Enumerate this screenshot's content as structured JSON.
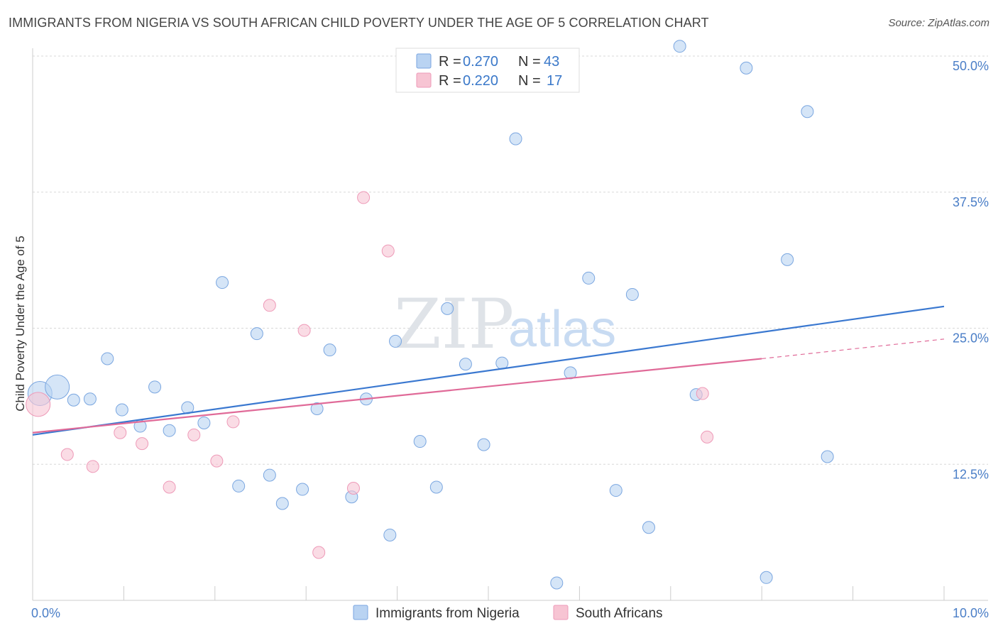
{
  "title": "IMMIGRANTS FROM NIGERIA VS SOUTH AFRICAN CHILD POVERTY UNDER THE AGE OF 5 CORRELATION CHART",
  "source": "Source: ZipAtlas.com",
  "watermark": {
    "zip": "ZIP",
    "atlas": "atlas"
  },
  "colors": {
    "blue": "#3a78d0",
    "pink": "#e06a98",
    "blue_fill": "#b9d3f2",
    "pink_fill": "#f7c4d3"
  },
  "legend": {
    "rows": [
      {
        "r_label": "R =",
        "r_value": "0.270",
        "n_label": "N =",
        "n_value": "43"
      },
      {
        "r_label": "R =",
        "r_value": "0.220",
        "n_label": "N =",
        "n_value": "17"
      }
    ]
  },
  "chart_data": {
    "type": "scatter",
    "title": "IMMIGRANTS FROM NIGERIA VS SOUTH AFRICAN CHILD POVERTY UNDER THE AGE OF 5 CORRELATION CHART",
    "xlabel": "",
    "ylabel": "Child Poverty Under the Age of 5",
    "xlim": [
      0,
      10
    ],
    "ylim": [
      0,
      50
    ],
    "x_tick_labels": [
      "0.0%",
      "10.0%"
    ],
    "y_ticks": [
      12.5,
      25.0,
      37.5,
      50.0
    ],
    "y_tick_labels": [
      "12.5%",
      "25.0%",
      "37.5%",
      "50.0%"
    ],
    "grid": true,
    "legend_position": "top-center",
    "series": [
      {
        "name": "Immigrants from Nigeria",
        "color": "#3a78d0",
        "points": [
          [
            0.08,
            19.0,
            3
          ],
          [
            0.27,
            19.6,
            2
          ],
          [
            0.45,
            18.4,
            1
          ],
          [
            0.63,
            18.5,
            1
          ],
          [
            0.82,
            22.2,
            1
          ],
          [
            0.98,
            17.5,
            1
          ],
          [
            1.18,
            16.0,
            1
          ],
          [
            1.34,
            19.6,
            1
          ],
          [
            1.5,
            15.6,
            1
          ],
          [
            1.7,
            17.7,
            1
          ],
          [
            1.88,
            16.3,
            1
          ],
          [
            2.08,
            29.2,
            1
          ],
          [
            2.26,
            10.5,
            1
          ],
          [
            2.46,
            24.5,
            1
          ],
          [
            2.6,
            11.5,
            1
          ],
          [
            2.74,
            8.9,
            1
          ],
          [
            2.96,
            10.2,
            1
          ],
          [
            3.12,
            17.6,
            1
          ],
          [
            3.26,
            23.0,
            1
          ],
          [
            3.5,
            9.5,
            1
          ],
          [
            3.66,
            18.5,
            1
          ],
          [
            3.92,
            6.0,
            1
          ],
          [
            3.98,
            23.8,
            1
          ],
          [
            4.25,
            14.6,
            1
          ],
          [
            4.43,
            10.4,
            1
          ],
          [
            4.55,
            26.8,
            1
          ],
          [
            4.75,
            21.7,
            1
          ],
          [
            4.95,
            14.3,
            1
          ],
          [
            5.15,
            21.8,
            1
          ],
          [
            5.3,
            42.4,
            1
          ],
          [
            5.75,
            1.6,
            1
          ],
          [
            5.9,
            20.9,
            1
          ],
          [
            6.1,
            29.6,
            1
          ],
          [
            6.4,
            10.1,
            1
          ],
          [
            6.58,
            28.1,
            1
          ],
          [
            6.76,
            6.7,
            1
          ],
          [
            7.1,
            50.9,
            1
          ],
          [
            7.28,
            18.9,
            1
          ],
          [
            7.83,
            48.9,
            1
          ],
          [
            8.05,
            2.1,
            1
          ],
          [
            8.28,
            31.3,
            1
          ],
          [
            8.5,
            44.9,
            1
          ],
          [
            8.72,
            13.2,
            1
          ]
        ]
      },
      {
        "name": "South Africans",
        "color": "#e06a98",
        "points": [
          [
            0.06,
            18.0,
            3
          ],
          [
            0.38,
            13.4,
            1
          ],
          [
            0.66,
            12.3,
            1
          ],
          [
            0.96,
            15.4,
            1
          ],
          [
            1.2,
            14.4,
            1
          ],
          [
            1.5,
            10.4,
            1
          ],
          [
            1.77,
            15.2,
            1
          ],
          [
            2.02,
            12.8,
            1
          ],
          [
            2.2,
            16.4,
            1
          ],
          [
            2.6,
            27.1,
            1
          ],
          [
            2.98,
            24.8,
            1
          ],
          [
            3.14,
            4.4,
            1
          ],
          [
            3.52,
            10.3,
            1
          ],
          [
            3.63,
            37.0,
            1
          ],
          [
            3.9,
            32.1,
            1
          ],
          [
            7.35,
            19.0,
            1
          ],
          [
            7.4,
            15.0,
            1
          ]
        ]
      }
    ],
    "trend_lines": [
      {
        "series": "Immigrants from Nigeria",
        "color": "#3a78d0",
        "x": [
          0.0,
          10.0
        ],
        "y": [
          15.2,
          27.0
        ],
        "style": "solid"
      },
      {
        "series": "South Africans",
        "color": "#e06a98",
        "x": [
          0.0,
          8.0
        ],
        "y": [
          15.4,
          22.2
        ],
        "style": "solid"
      },
      {
        "series": "South Africans",
        "color": "#e06a98",
        "x": [
          8.0,
          10.0
        ],
        "y": [
          22.2,
          24.0
        ],
        "style": "dashed"
      }
    ]
  }
}
